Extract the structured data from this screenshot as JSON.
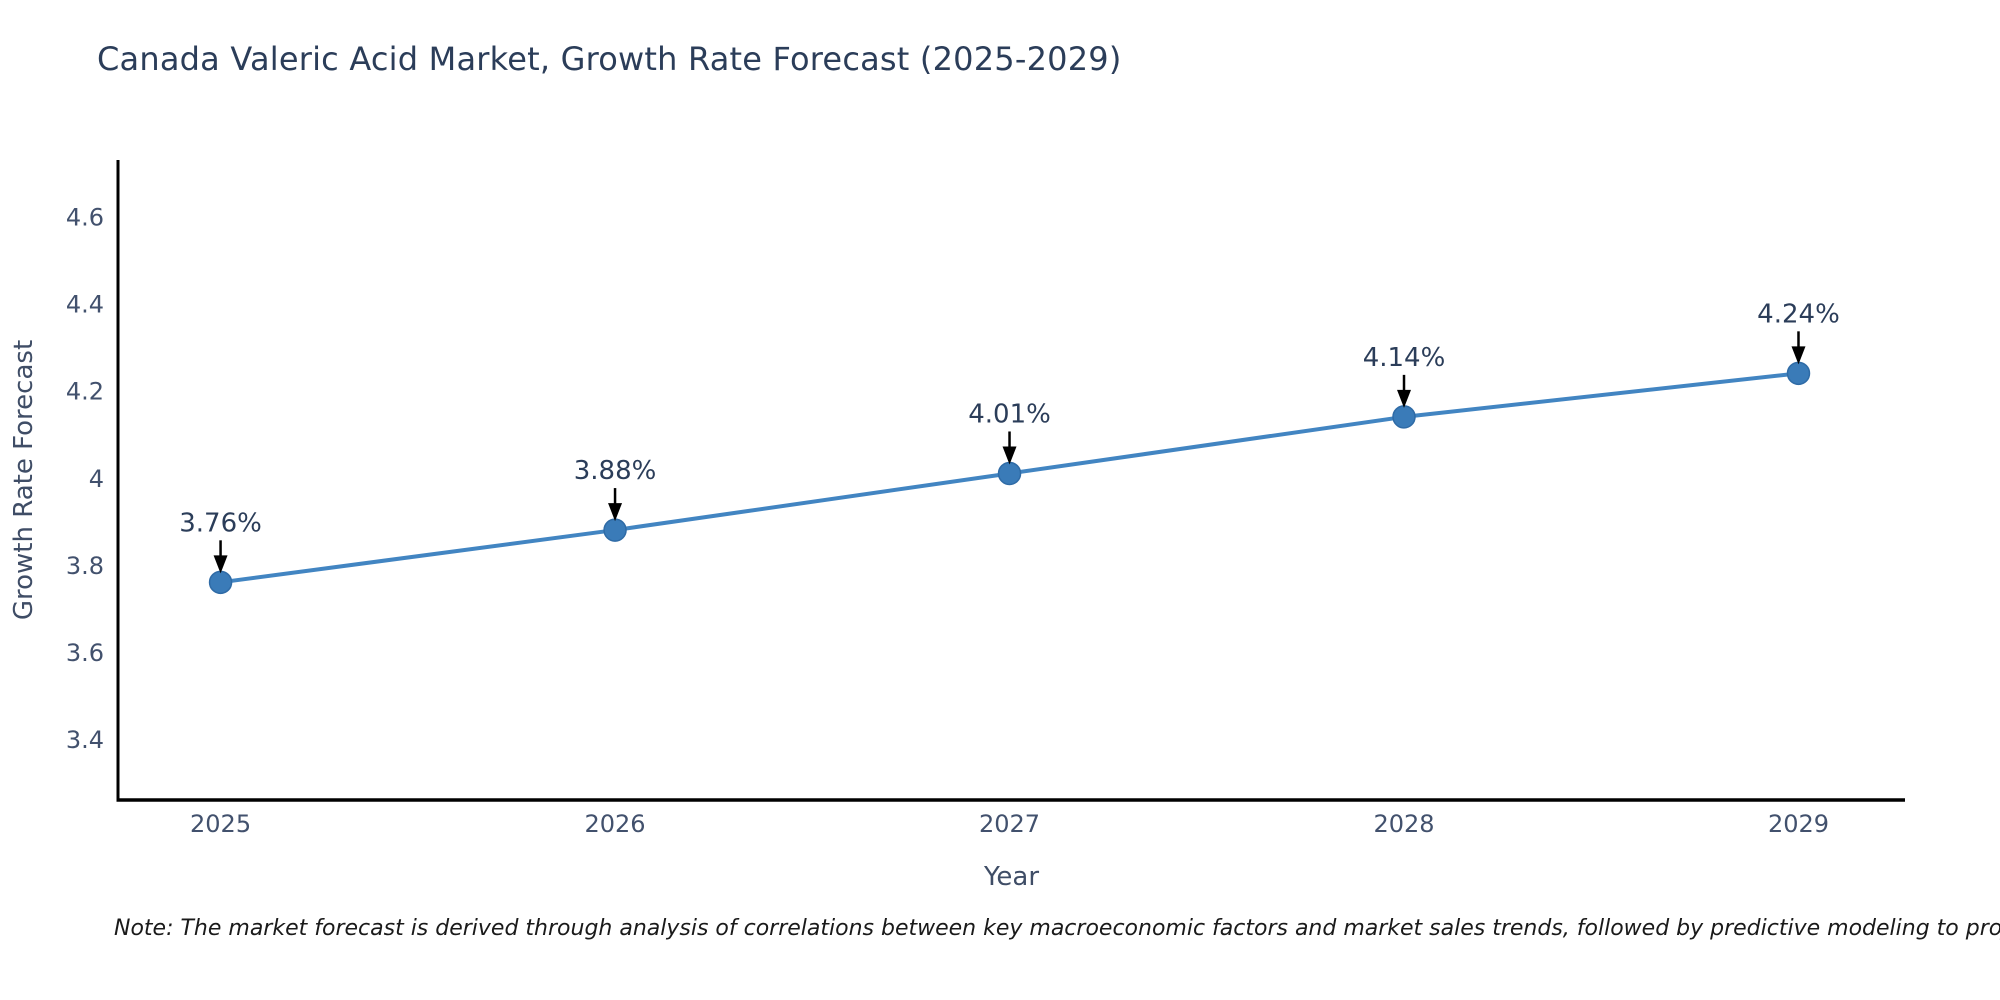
{
  "title": "Canada Valeric Acid Market, Growth Rate Forecast (2025-2029)",
  "note": "Note: The market forecast is derived through analysis of correlations between key macroeconomic factors and market sales trends, followed by predictive modeling to project future sales",
  "chart_data": {
    "type": "line",
    "title": "Canada Valeric Acid Market, Growth Rate Forecast (2025-2029)",
    "xlabel": "Year",
    "ylabel": "Growth Rate Forecast",
    "x": [
      2025,
      2026,
      2027,
      2028,
      2029
    ],
    "categories": [
      "2025",
      "2026",
      "2027",
      "2028",
      "2029"
    ],
    "series": [
      {
        "name": "Growth Rate Forecast",
        "values": [
          3.76,
          3.88,
          4.01,
          4.14,
          4.24
        ]
      }
    ],
    "point_labels": [
      "3.76%",
      "3.88%",
      "4.01%",
      "4.14%",
      "4.24%"
    ],
    "y_ticks": [
      3.4,
      3.6,
      3.8,
      4,
      4.2,
      4.4,
      4.6
    ],
    "xlim": [
      2024.74,
      2029.27
    ],
    "ylim": [
      3.26,
      4.73
    ],
    "grid": false,
    "legend_position": "none",
    "colors": {
      "line": "#4285c2",
      "marker": "#3a7bb8",
      "marker_edge": "#2f6ba6",
      "axis": "#000000",
      "title_text": "#2b3d59",
      "tick_text": "#42516d",
      "axis_title_text": "#3f4d66",
      "annotation_text": "#2b3d59",
      "arrow": "#000000",
      "note_text": "#1a1a1a"
    }
  }
}
